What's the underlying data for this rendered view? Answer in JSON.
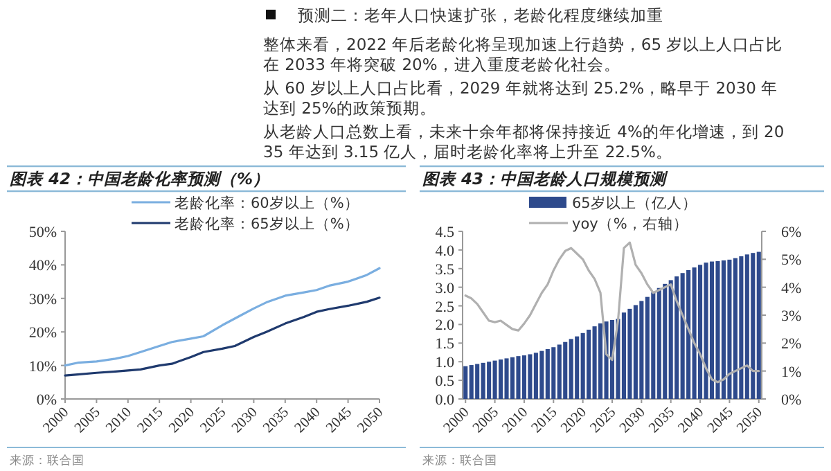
{
  "chart_data": [
    {
      "type": "other",
      "title": "预测二：老年人口快速扩张，老龄化程度继续加重",
      "annotations": [
        "整体来看，2022 年后老龄化将呈现加速上行趋势，65 岁以上人口占比在 2033 年将突破 20%，进入重度老龄化社会。",
        "从 60 岁以上人口占比看，2029 年就将达到 25.2%，略早于 2030 年达到 25%的政策预期。",
        "从老龄人口总数上看，未来十余年都将保持接近 4%的年化增速，到 2035 年达到 3.15 亿人，届时老龄化率将上升至 22.5%。"
      ]
    },
    {
      "type": "line",
      "title": "图表 42：中国老龄化率预测（%）",
      "legend": "top",
      "series": [
        {
          "name": "老龄化率：60岁以上（%）",
          "color": "#7aaee0",
          "x": [
            2000,
            2002,
            2005,
            2008,
            2010,
            2012,
            2015,
            2017,
            2020,
            2022,
            2025,
            2028,
            2030,
            2032,
            2035,
            2038,
            2040,
            2042,
            2045,
            2048,
            2050
          ],
          "values": [
            10.0,
            10.8,
            11.2,
            12.0,
            12.8,
            14.0,
            15.8,
            17.0,
            18.0,
            18.7,
            22.0,
            25.0,
            27.0,
            28.8,
            30.8,
            31.8,
            32.5,
            33.8,
            35.0,
            37.0,
            39.0
          ]
        },
        {
          "name": "老龄化率：65岁以上（%）",
          "color": "#1f3a6e",
          "x": [
            2000,
            2002,
            2005,
            2008,
            2010,
            2012,
            2015,
            2017,
            2020,
            2022,
            2025,
            2027,
            2030,
            2032,
            2035,
            2038,
            2040,
            2042,
            2045,
            2048,
            2050
          ],
          "values": [
            7.0,
            7.3,
            7.8,
            8.2,
            8.5,
            8.8,
            10.0,
            10.5,
            12.5,
            14.0,
            15.0,
            15.8,
            18.5,
            20.0,
            22.5,
            24.5,
            26.0,
            26.8,
            27.8,
            29.0,
            30.2
          ]
        }
      ],
      "xlim": [
        2000,
        2050
      ],
      "xticks": [
        2000,
        2005,
        2010,
        2015,
        2020,
        2025,
        2030,
        2035,
        2040,
        2045,
        2050
      ],
      "ylim": [
        0,
        50
      ],
      "yticks": [
        {
          "value": 0,
          "label": "0%"
        },
        {
          "value": 10,
          "label": "10%"
        },
        {
          "value": 20,
          "label": "20%"
        },
        {
          "value": 30,
          "label": "30%"
        },
        {
          "value": 40,
          "label": "40%"
        },
        {
          "value": 50,
          "label": "50%"
        }
      ],
      "annotations": [
        "来源：联合国"
      ]
    },
    {
      "type": "bar",
      "title": "图表 43：中国老龄人口规模预测",
      "legend": "top",
      "x": [
        2000,
        2001,
        2002,
        2003,
        2004,
        2005,
        2006,
        2007,
        2008,
        2009,
        2010,
        2011,
        2012,
        2013,
        2014,
        2015,
        2016,
        2017,
        2018,
        2019,
        2020,
        2021,
        2022,
        2023,
        2024,
        2025,
        2026,
        2027,
        2028,
        2029,
        2030,
        2031,
        2032,
        2033,
        2034,
        2035,
        2036,
        2037,
        2038,
        2039,
        2040,
        2041,
        2042,
        2043,
        2044,
        2045,
        2046,
        2047,
        2048,
        2049,
        2050
      ],
      "series": [
        {
          "name": "65岁以上（亿人）",
          "color": "#2e4a8c",
          "values": [
            0.88,
            0.91,
            0.94,
            0.97,
            1.0,
            1.03,
            1.06,
            1.09,
            1.12,
            1.15,
            1.17,
            1.2,
            1.24,
            1.29,
            1.34,
            1.39,
            1.46,
            1.53,
            1.61,
            1.68,
            1.77,
            1.86,
            1.95,
            2.03,
            2.08,
            2.12,
            2.15,
            2.32,
            2.42,
            2.52,
            2.63,
            2.74,
            2.86,
            2.98,
            3.09,
            3.19,
            3.29,
            3.38,
            3.46,
            3.53,
            3.6,
            3.66,
            3.69,
            3.7,
            3.72,
            3.74,
            3.78,
            3.83,
            3.88,
            3.92,
            3.95
          ]
        },
        {
          "name": "yoy（%，右轴）",
          "type": "line",
          "axis": "y2",
          "color": "#b0b0b0",
          "values": [
            3.7,
            3.6,
            3.4,
            3.1,
            2.8,
            2.75,
            2.8,
            2.65,
            2.5,
            2.45,
            2.7,
            3.0,
            3.4,
            3.8,
            4.1,
            4.6,
            5.0,
            5.3,
            5.4,
            5.2,
            5.0,
            4.6,
            4.3,
            3.8,
            1.6,
            1.4,
            2.8,
            5.4,
            5.6,
            4.8,
            4.5,
            4.1,
            3.8,
            3.9,
            4.0,
            4.1,
            3.5,
            3.0,
            2.5,
            2.0,
            1.6,
            1.1,
            0.7,
            0.6,
            0.7,
            0.9,
            1.0,
            1.1,
            1.2,
            1.0,
            1.0
          ]
        }
      ],
      "xlim": [
        1999.5,
        2050.5
      ],
      "xticks": [
        2000,
        2005,
        2010,
        2015,
        2020,
        2025,
        2030,
        2035,
        2040,
        2045,
        2050
      ],
      "ylim": [
        0,
        4.5
      ],
      "yticks": [
        {
          "value": 0,
          "label": "0.0"
        },
        {
          "value": 0.5,
          "label": "0.5"
        },
        {
          "value": 1,
          "label": "1.0"
        },
        {
          "value": 1.5,
          "label": "1.5"
        },
        {
          "value": 2,
          "label": "2.0"
        },
        {
          "value": 2.5,
          "label": "2.5"
        },
        {
          "value": 3,
          "label": "3.0"
        },
        {
          "value": 3.5,
          "label": "3.5"
        },
        {
          "value": 4,
          "label": "4.0"
        },
        {
          "value": 4.5,
          "label": "4.5"
        }
      ],
      "y2lim": [
        0,
        6
      ],
      "y2ticks": [
        {
          "value": 0,
          "label": "0%"
        },
        {
          "value": 1,
          "label": "1%"
        },
        {
          "value": 2,
          "label": "2%"
        },
        {
          "value": 3,
          "label": "3%"
        },
        {
          "value": 4,
          "label": "4%"
        },
        {
          "value": 5,
          "label": "5%"
        },
        {
          "value": 6,
          "label": "6%"
        }
      ],
      "annotations": [
        "来源：联合国"
      ]
    }
  ]
}
